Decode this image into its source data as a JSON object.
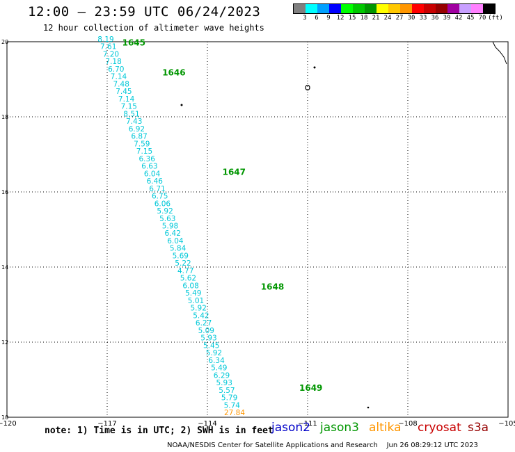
{
  "header": {
    "title": "12:00 – 23:59 UTC 06/24/2023",
    "subtitle": "12 hour collection of altimeter wave heights"
  },
  "legend": {
    "unit": "(ft)",
    "colors": [
      "#808080",
      "#00ffff",
      "#00a0ff",
      "#0000ff",
      "#00ff00",
      "#00c800",
      "#009600",
      "#ffff00",
      "#ffc800",
      "#ff9600",
      "#ff0000",
      "#c80000",
      "#960000",
      "#a000a0",
      "#c8a0ff",
      "#ff80ff",
      "#000000"
    ],
    "labels": [
      "3",
      "6",
      "9",
      "12",
      "15",
      "18",
      "21",
      "24",
      "27",
      "30",
      "33",
      "36",
      "39",
      "42",
      "45",
      "70"
    ]
  },
  "map": {
    "lon_min": -120,
    "lon_max": -105,
    "lat_min": 10,
    "lat_max": 20,
    "x_ticks": [
      -120,
      -117,
      -114,
      -111,
      -108,
      -105
    ],
    "y_ticks": [
      10,
      12,
      14,
      16,
      18,
      20
    ],
    "track_color": "#00c8d8",
    "high_color": "#ff9600",
    "pass_color": "#009600",
    "swh_ft": [
      "8.19",
      "7.61",
      "7.20",
      "7.18",
      "6.70",
      "7.14",
      "7.48",
      "7.45",
      "7.14",
      "7.15",
      "8.51",
      "7.43",
      "6.92",
      "6.87",
      "7.59",
      "7.15",
      "6.36",
      "6.63",
      "6.04",
      "6.46",
      "6.71",
      "6.75",
      "6.06",
      "5.92",
      "5.63",
      "5.98",
      "6.42",
      "6.04",
      "5.84",
      "5.69",
      "5.22",
      "4.77",
      "5.62",
      "6.08",
      "5.49",
      "5.01",
      "5.92",
      "5.42",
      "6.27",
      "5.09",
      "5.93",
      "5.45",
      "5.92",
      "6.34",
      "5.49",
      "6.29",
      "5.93",
      "5.57",
      "5.79",
      "5.74",
      "27.84"
    ],
    "pass_times": [
      {
        "label": "1645",
        "lon": -116.55,
        "lat": 19.9
      },
      {
        "label": "1646",
        "lon": -115.35,
        "lat": 19.1
      },
      {
        "label": "1647",
        "lon": -113.55,
        "lat": 16.45
      },
      {
        "label": "1648",
        "lon": -112.4,
        "lat": 13.4
      },
      {
        "label": "1649",
        "lon": -111.25,
        "lat": 10.7
      }
    ]
  },
  "note": "note: 1) Time is in UTC; 2) SWH is in feet",
  "satellites": [
    {
      "name": "jason2",
      "color": "#0000c8"
    },
    {
      "name": "jason3",
      "color": "#009600"
    },
    {
      "name": "altika",
      "color": "#ff9600"
    },
    {
      "name": "cryosat",
      "color": "#c80000"
    },
    {
      "name": "s3a",
      "color": "#960000"
    }
  ],
  "footer": "NOAA/NESDIS Center for Satellite Applications and Research    Jun 26 08:29:12 UTC 2023"
}
